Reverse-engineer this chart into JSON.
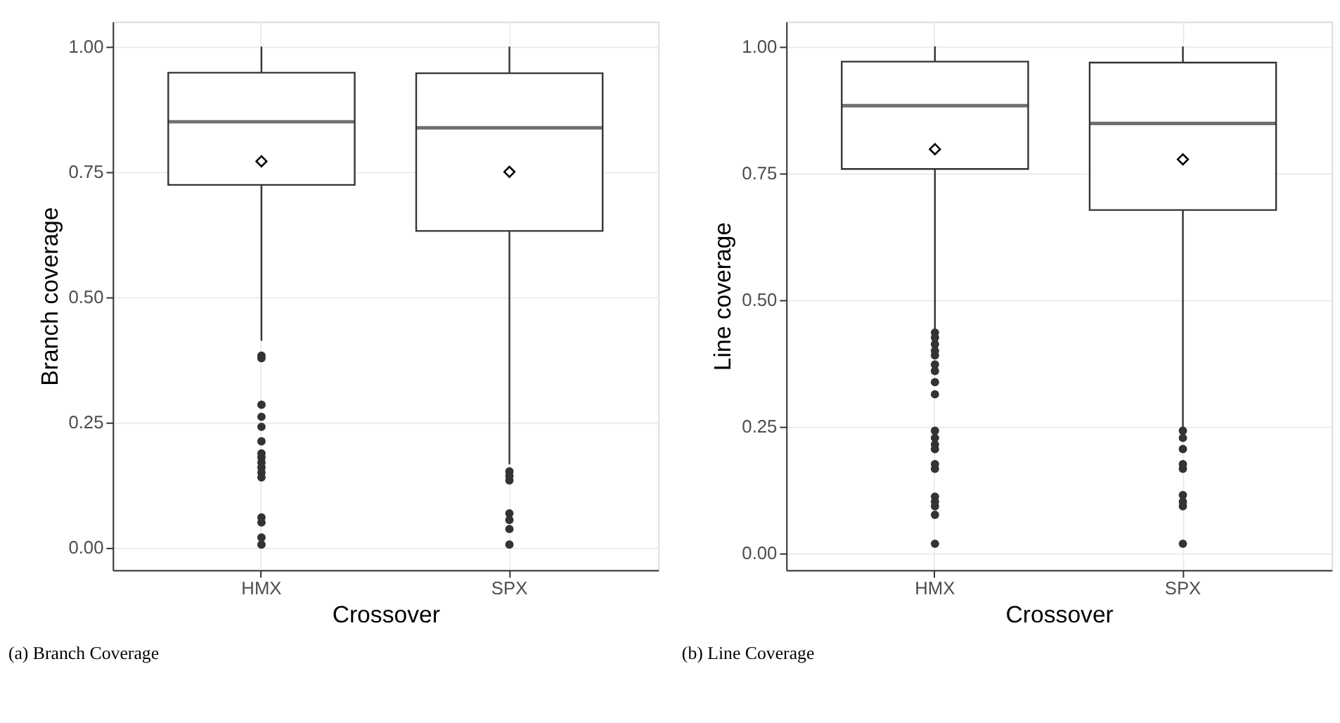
{
  "chart_data": [
    {
      "type": "box",
      "xlabel": "Crossover",
      "ylabel": "Branch coverage",
      "categories": [
        "HMX",
        "SPX"
      ],
      "boxes": [
        {
          "low": 0.413,
          "q1": 0.724,
          "median": 0.85,
          "q3": 0.948,
          "high": 1.0,
          "mean": 0.771,
          "outliers": [
            0.383,
            0.378,
            0.285,
            0.261,
            0.241,
            0.212,
            0.188,
            0.18,
            0.17,
            0.16,
            0.15,
            0.14,
            0.06,
            0.05,
            0.02,
            0.006
          ]
        },
        {
          "low": 0.166,
          "q1": 0.632,
          "median": 0.838,
          "q3": 0.947,
          "high": 1.0,
          "mean": 0.75,
          "outliers": [
            0.152,
            0.143,
            0.134,
            0.068,
            0.055,
            0.037,
            0.006
          ]
        }
      ],
      "ylim": [
        -0.045,
        1.05
      ],
      "yticks": [
        {
          "value": 0,
          "label": "0.00"
        },
        {
          "value": 0.25,
          "label": "0.25"
        },
        {
          "value": 0.5,
          "label": "0.50"
        },
        {
          "value": 0.75,
          "label": "0.75"
        },
        {
          "value": 1,
          "label": "1.00"
        }
      ],
      "grid": true,
      "marker": "circle",
      "annotations": [
        "(a) Branch Coverage"
      ]
    },
    {
      "type": "box",
      "xlabel": "Crossover",
      "ylabel": "Line coverage",
      "categories": [
        "HMX",
        "SPX"
      ],
      "boxes": [
        {
          "low": 0.44,
          "q1": 0.758,
          "median": 0.883,
          "q3": 0.97,
          "high": 1.0,
          "mean": 0.797,
          "outliers": [
            0.435,
            0.425,
            0.412,
            0.399,
            0.39,
            0.372,
            0.359,
            0.337,
            0.313,
            0.241,
            0.227,
            0.214,
            0.205,
            0.175,
            0.166,
            0.111,
            0.101,
            0.092,
            0.075,
            0.018
          ]
        },
        {
          "low": 0.245,
          "q1": 0.677,
          "median": 0.848,
          "q3": 0.968,
          "high": 1.0,
          "mean": 0.777,
          "outliers": [
            0.241,
            0.227,
            0.205,
            0.175,
            0.166,
            0.114,
            0.101,
            0.092,
            0.018
          ]
        }
      ],
      "ylim": [
        -0.034,
        1.049
      ],
      "yticks": [
        {
          "value": 0,
          "label": "0.00"
        },
        {
          "value": 0.25,
          "label": "0.25"
        },
        {
          "value": 0.5,
          "label": "0.50"
        },
        {
          "value": 0.75,
          "label": "0.75"
        },
        {
          "value": 1,
          "label": "1.00"
        }
      ],
      "grid": true,
      "marker": "circle",
      "annotations": [
        "(b) Line Coverage"
      ]
    }
  ]
}
